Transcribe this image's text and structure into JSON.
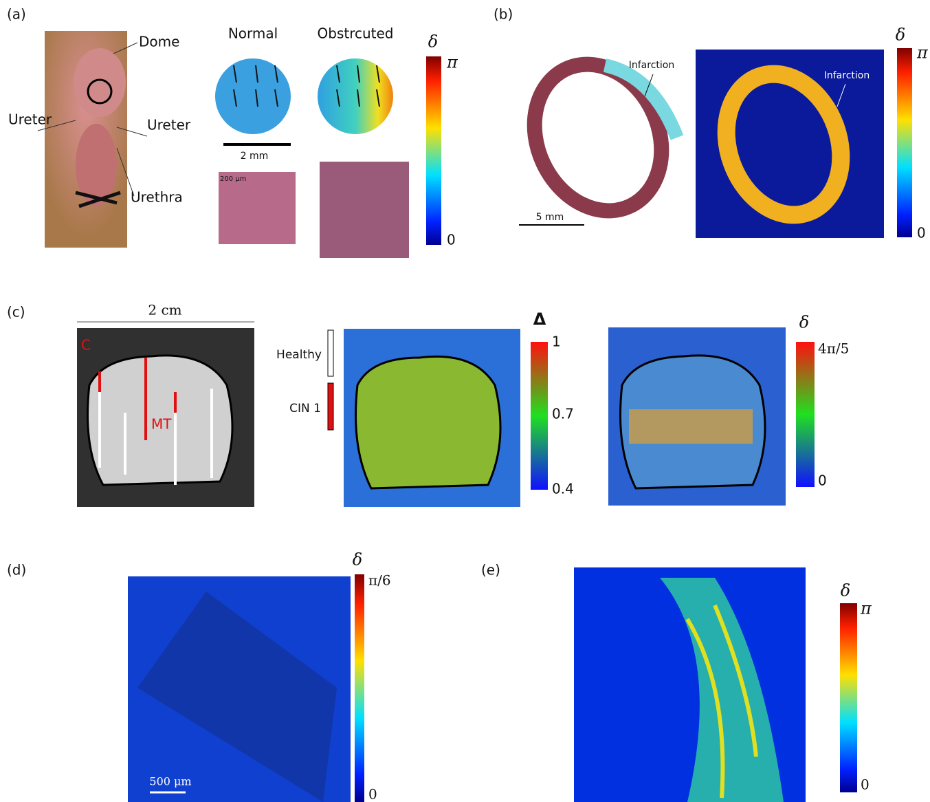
{
  "panels": {
    "a": {
      "label": "(a)",
      "annotations": [
        "Dome",
        "Ureter",
        "Ureter",
        "Urethra"
      ],
      "normal": "Normal",
      "obstructed": "Obstrcuted",
      "scale_top": "2 mm",
      "scale_bottom": "200 μm",
      "colorbar": {
        "symbol": "δ",
        "top": "π",
        "bottom": "0"
      }
    },
    "b": {
      "label": "(b)",
      "infarction_left": "Infarction",
      "infarction_right": "Infarction",
      "scale": "5 mm",
      "colorbar": {
        "symbol": "δ",
        "top": "π",
        "bottom": "0"
      }
    },
    "c": {
      "label": "(c)",
      "scale": "2 cm",
      "marker_c": "C",
      "marker_mt": "MT",
      "legend_healthy": "Healthy",
      "legend_cin": "CIN 1",
      "colorbar_1": {
        "symbol": "Δ",
        "top": "1",
        "middle": "0.7",
        "bottom": "0.4"
      },
      "colorbar_2": {
        "symbol": "δ",
        "top": "4π/5",
        "bottom": "0"
      }
    },
    "d": {
      "label": "(d)",
      "scale": "500 μm",
      "colorbar": {
        "symbol": "δ",
        "top": "π/6",
        "bottom": "0"
      }
    },
    "e": {
      "label": "(e)",
      "colorbar": {
        "symbol": "δ",
        "top": "π",
        "bottom": "0"
      }
    }
  }
}
